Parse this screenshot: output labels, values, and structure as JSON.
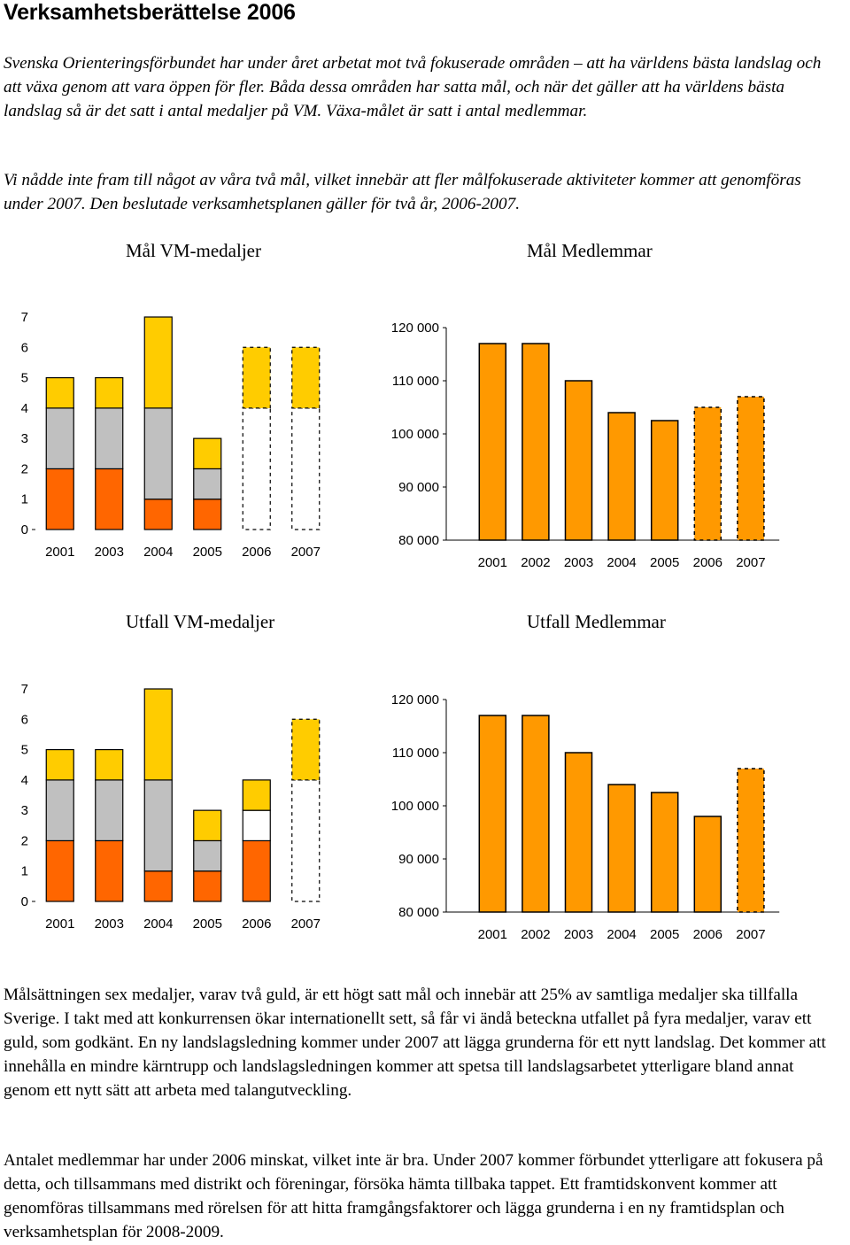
{
  "doc": {
    "heading": "Verksamhetsberättelse 2006",
    "intro_p1": "Svenska Orienteringsförbundet har under året arbetat mot två fokuserade områden – att ha världens bästa landslag och att växa genom att vara öppen för fler. Båda dessa områden har satta mål, och när det gäller att ha världens bästa landslag så är det satt i antal medaljer på VM. Växa-målet är satt i antal medlemmar.",
    "intro_p2": "Vi nådde inte fram till något av våra två mål, vilket innebär att fler målfokuserade aktiviteter kommer att genomföras under 2007. Den beslutade verksamhetsplanen gäller för två år, 2006-2007.",
    "body_p1": "Målsättningen sex medaljer, varav två guld, är ett högt satt mål och innebär att 25% av samtliga medaljer ska tillfalla Sverige. I takt med att konkurrensen ökar internationellt sett, så får vi ändå beteckna utfallet på fyra medaljer, varav ett guld, som godkänt. En ny landslagsledning kommer under 2007 att lägga grunderna för ett nytt landslag. Det kommer att innehålla en mindre kärntrupp och landslagsledningen kommer att spetsa till landslagsarbetet ytterligare bland annat genom ett nytt sätt att arbeta med talangutveckling.",
    "body_p2": "Antalet medlemmar har under 2006 minskat, vilket inte är bra. Under 2007 kommer förbundet ytterligare att fokusera på detta, och tillsammans med distrikt och föreningar, försöka hämta tillbaka tappet. Ett framtidskonvent kommer att genomföras tillsammans med rörelsen för att hitta framgångsfaktorer och lägga grunderna i en ny framtidsplan och verksamhetsplan för 2008-2009."
  },
  "colors": {
    "gold": "#ffcc00",
    "silver": "#c0c0c0",
    "bronze": "#ff6600",
    "members": "#ff9900",
    "hollow": "#ffffff"
  },
  "chart_data": [
    {
      "id": "mal_vm",
      "type": "bar",
      "stacked": true,
      "title": "Mål VM-medaljer",
      "categories": [
        "2001",
        "2003",
        "2004",
        "2005",
        "2006",
        "2007"
      ],
      "series": [
        {
          "name": "bronze",
          "values": [
            2,
            2,
            1,
            1,
            0,
            0
          ]
        },
        {
          "name": "silver",
          "values": [
            2,
            2,
            3,
            1,
            0,
            0
          ]
        },
        {
          "name": "hollow",
          "values": [
            0,
            0,
            0,
            0,
            4,
            4
          ]
        },
        {
          "name": "gold",
          "values": [
            1,
            1,
            3,
            1,
            2,
            2
          ]
        }
      ],
      "dashed": [
        false,
        false,
        false,
        false,
        true,
        true
      ],
      "yticks": [
        "0",
        "1",
        "2",
        "3",
        "4",
        "5",
        "6",
        "7"
      ],
      "ylim": [
        0,
        7
      ]
    },
    {
      "id": "mal_medl",
      "type": "bar",
      "title": "Mål Medlemmar",
      "categories": [
        "2001",
        "2002",
        "2003",
        "2004",
        "2005",
        "2006",
        "2007"
      ],
      "values": [
        117000,
        117000,
        110000,
        104000,
        102500,
        105000,
        107000
      ],
      "dashed": [
        false,
        false,
        false,
        false,
        false,
        true,
        true
      ],
      "yticks": [
        "80 000",
        "90 000",
        "100 000",
        "110 000",
        "120 000"
      ],
      "ylim": [
        80000,
        120000
      ]
    },
    {
      "id": "utfall_vm",
      "type": "bar",
      "stacked": true,
      "title": "Utfall VM-medaljer",
      "categories": [
        "2001",
        "2003",
        "2004",
        "2005",
        "2006",
        "2007"
      ],
      "series": [
        {
          "name": "bronze",
          "values": [
            2,
            2,
            1,
            1,
            2,
            0
          ]
        },
        {
          "name": "silver",
          "values": [
            2,
            2,
            3,
            1,
            0,
            0
          ]
        },
        {
          "name": "hollow",
          "values": [
            0,
            0,
            0,
            0,
            1,
            4
          ]
        },
        {
          "name": "gold",
          "values": [
            1,
            1,
            3,
            1,
            1,
            2
          ]
        }
      ],
      "dashed": [
        false,
        false,
        false,
        false,
        false,
        true
      ],
      "yticks": [
        "0",
        "1",
        "2",
        "3",
        "4",
        "5",
        "6",
        "7"
      ],
      "ylim": [
        0,
        7
      ]
    },
    {
      "id": "utfall_medl",
      "type": "bar",
      "title": "Utfall Medlemmar",
      "categories": [
        "2001",
        "2002",
        "2003",
        "2004",
        "2005",
        "2006",
        "2007"
      ],
      "values": [
        117000,
        117000,
        110000,
        104000,
        102500,
        98000,
        107000
      ],
      "dashed": [
        false,
        false,
        false,
        false,
        false,
        false,
        true
      ],
      "yticks": [
        "80 000",
        "90 000",
        "100 000",
        "110 000",
        "120 000"
      ],
      "ylim": [
        80000,
        120000
      ]
    }
  ]
}
